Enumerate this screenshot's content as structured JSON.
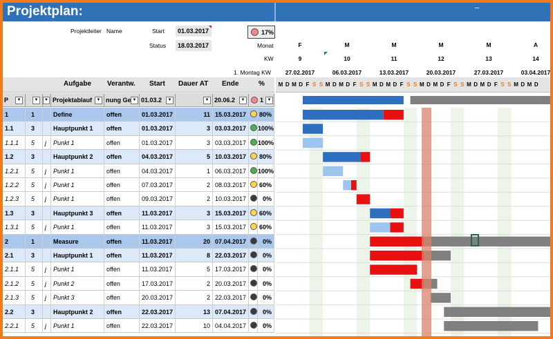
{
  "title": "Projektplan:",
  "info": {
    "leader_label": "Projektleiter",
    "leader_value": "Name",
    "start_label": "Start",
    "start_value": "01.03.2017",
    "status_label": "Status",
    "status_value": "18.03.2017",
    "overall_pct": "17%"
  },
  "timeline_header": {
    "row_labels": [
      "Monat",
      "KW",
      "1. Montag KW"
    ],
    "weeks": [
      {
        "month": "F",
        "kw": "9",
        "monday": "27.02.2017"
      },
      {
        "month": "M",
        "kw": "10",
        "monday": "06.03.2017"
      },
      {
        "month": "M",
        "kw": "11",
        "monday": "13.03.2017"
      },
      {
        "month": "M",
        "kw": "12",
        "monday": "20.03.2017"
      },
      {
        "month": "M",
        "kw": "13",
        "monday": "27.03.2017"
      },
      {
        "month": "A",
        "kw": "14",
        "monday": "03.04.2017"
      }
    ],
    "days": [
      "M",
      "D",
      "M",
      "D",
      "F",
      "S",
      "S",
      "M",
      "D",
      "M",
      "D",
      "F",
      "S",
      "S",
      "M",
      "D",
      "M",
      "D",
      "F",
      "S",
      "S",
      "M",
      "D",
      "M",
      "D",
      "F",
      "S",
      "S",
      "M",
      "D",
      "M",
      "D",
      "F",
      "S",
      "S",
      "M",
      "D",
      "M",
      "D"
    ]
  },
  "columns": {
    "task": "Aufgabe",
    "resp": "Verantw.",
    "start": "Start",
    "dur": "Dauer AT",
    "end": "Ende",
    "pct": "%"
  },
  "filter_row": {
    "id": "P",
    "task": "Projektablauf",
    "resp": "nung Ge",
    "start": "01.03.2",
    "end": "20.06.2",
    "pct": "1"
  },
  "rows": [
    {
      "level": 0,
      "id": "1",
      "num": "1",
      "j": "",
      "task": "Define",
      "resp": "offen",
      "start": "01.03.2017",
      "dur": "11",
      "end": "15.03.2017",
      "status": "yellow",
      "pct": "80%"
    },
    {
      "level": 1,
      "id": "1.1",
      "num": "3",
      "j": "",
      "task": "Hauptpunkt 1",
      "resp": "offen",
      "start": "01.03.2017",
      "dur": "3",
      "end": "03.03.2017",
      "status": "green",
      "pct": "100%"
    },
    {
      "level": 2,
      "id": "1.1.1",
      "num": "5",
      "j": "j",
      "task": "Punkt 1",
      "resp": "offen",
      "start": "01.03.2017",
      "dur": "3",
      "end": "03.03.2017",
      "status": "green",
      "pct": "100%"
    },
    {
      "level": 1,
      "id": "1.2",
      "num": "3",
      "j": "",
      "task": "Hauptpunkt 2",
      "resp": "offen",
      "start": "04.03.2017",
      "dur": "5",
      "end": "10.03.2017",
      "status": "yellow",
      "pct": "80%"
    },
    {
      "level": 2,
      "id": "1.2.1",
      "num": "5",
      "j": "j",
      "task": "Punkt 1",
      "resp": "offen",
      "start": "04.03.2017",
      "dur": "1",
      "end": "06.03.2017",
      "status": "green",
      "pct": "100%"
    },
    {
      "level": 2,
      "id": "1.2.2",
      "num": "5",
      "j": "j",
      "task": "Punkt 1",
      "resp": "offen",
      "start": "07.03.2017",
      "dur": "2",
      "end": "08.03.2017",
      "status": "yellow",
      "pct": "60%"
    },
    {
      "level": 2,
      "id": "1.2.3",
      "num": "5",
      "j": "j",
      "task": "Punkt 1",
      "resp": "offen",
      "start": "09.03.2017",
      "dur": "2",
      "end": "10.03.2017",
      "status": "black",
      "pct": "0%"
    },
    {
      "level": 1,
      "id": "1.3",
      "num": "3",
      "j": "",
      "task": "Hauptpunkt 3",
      "resp": "offen",
      "start": "11.03.2017",
      "dur": "3",
      "end": "15.03.2017",
      "status": "yellow",
      "pct": "60%"
    },
    {
      "level": 2,
      "id": "1.3.1",
      "num": "5",
      "j": "j",
      "task": "Punkt 1",
      "resp": "offen",
      "start": "11.03.2017",
      "dur": "3",
      "end": "15.03.2017",
      "status": "yellow",
      "pct": "60%"
    },
    {
      "level": 0,
      "id": "2",
      "num": "1",
      "j": "",
      "task": "Measure",
      "resp": "offen",
      "start": "11.03.2017",
      "dur": "20",
      "end": "07.04.2017",
      "status": "black",
      "pct": "0%"
    },
    {
      "level": 1,
      "id": "2.1",
      "num": "3",
      "j": "",
      "task": "Hauptpunkt 1",
      "resp": "offen",
      "start": "11.03.2017",
      "dur": "8",
      "end": "22.03.2017",
      "status": "black",
      "pct": "0%"
    },
    {
      "level": 2,
      "id": "2.1.1",
      "num": "5",
      "j": "j",
      "task": "Punkt 1",
      "resp": "offen",
      "start": "11.03.2017",
      "dur": "5",
      "end": "17.03.2017",
      "status": "black",
      "pct": "0%"
    },
    {
      "level": 2,
      "id": "2.1.2",
      "num": "5",
      "j": "j",
      "task": "Punkt 2",
      "resp": "offen",
      "start": "17.03.2017",
      "dur": "2",
      "end": "20.03.2017",
      "status": "black",
      "pct": "0%"
    },
    {
      "level": 2,
      "id": "2.1.3",
      "num": "5",
      "j": "j",
      "task": "Punkt 3",
      "resp": "offen",
      "start": "20.03.2017",
      "dur": "2",
      "end": "22.03.2017",
      "status": "black",
      "pct": "0%"
    },
    {
      "level": 1,
      "id": "2.2",
      "num": "3",
      "j": "",
      "task": "Hauptpunkt 2",
      "resp": "offen",
      "start": "22.03.2017",
      "dur": "13",
      "end": "07.04.2017",
      "status": "black",
      "pct": "0%"
    },
    {
      "level": 2,
      "id": "2.2.1",
      "num": "5",
      "j": "j",
      "task": "Punkt 1",
      "resp": "offen",
      "start": "22.03.2017",
      "dur": "10",
      "end": "04.04.2017",
      "status": "black",
      "pct": "0%"
    }
  ],
  "colors": {
    "title_bar": "#2f72b8",
    "frame": "#f07a1c",
    "done_bar": "#2f6fc0",
    "late_bar": "#e81010",
    "future_bar": "#808080",
    "today_line": "#d9826a",
    "weekend": "#f07a1c",
    "status_green": "#4caf50",
    "status_yellow": "#ffd54f",
    "status_black": "#3a3a3a",
    "status_red": "#f28a8a"
  },
  "icons": {
    "filter": "funnel-icon",
    "dropdown": "chevron-down-icon",
    "status": "circle-icon"
  }
}
